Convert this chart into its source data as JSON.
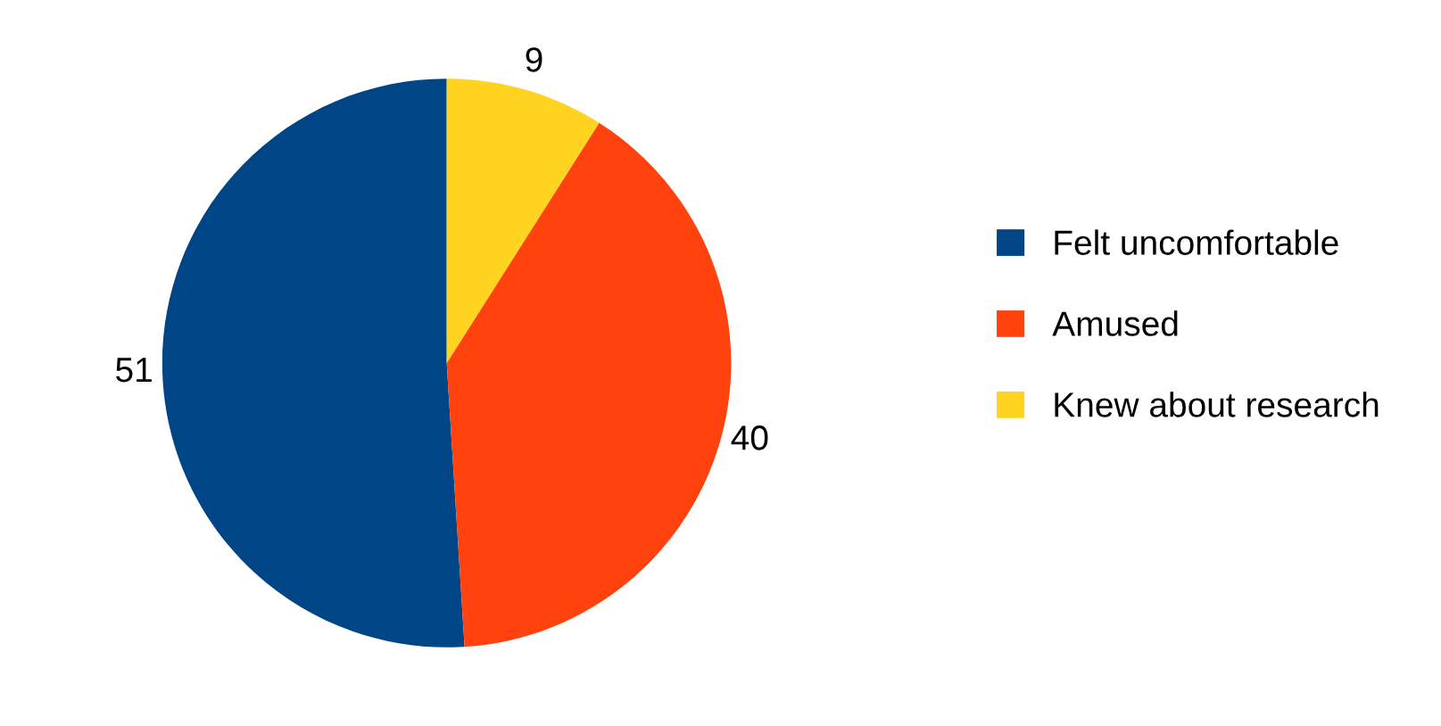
{
  "chart_data": {
    "type": "pie",
    "categories": [
      "Felt uncomfortable",
      "Amused",
      "Knew about research"
    ],
    "values": [
      51,
      40,
      9
    ],
    "colors": [
      "#004586",
      "#ff420e",
      "#ffd320"
    ],
    "data_labels": true,
    "legend": "right"
  }
}
